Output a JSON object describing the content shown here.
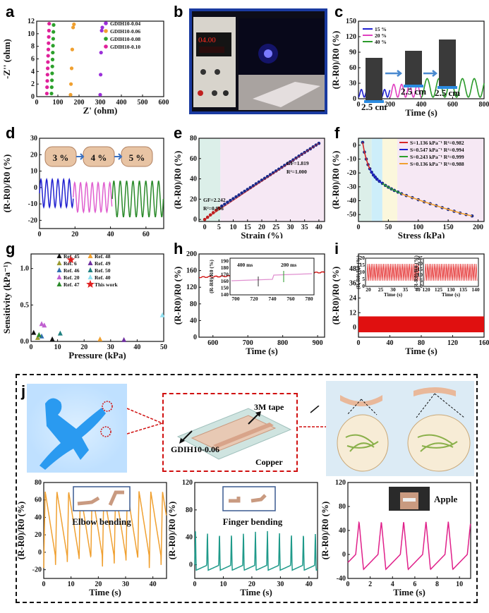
{
  "panel_labels": [
    "a",
    "b",
    "c",
    "d",
    "e",
    "f",
    "g",
    "h",
    "i",
    "j"
  ],
  "psu_display": "04.00",
  "chart_data": [
    {
      "panel": "a",
      "type": "scatter",
      "xlabel": "Z' (ohm)",
      "ylabel": "-Z'' (ohm)",
      "xlim": [
        0,
        600
      ],
      "ylim": [
        0,
        12
      ],
      "xticks": [
        "0",
        "100",
        "200",
        "300",
        "400",
        "500",
        "600"
      ],
      "yticks": [
        "0",
        "2",
        "4",
        "6",
        "8",
        "10",
        "12"
      ],
      "series": [
        {
          "name": "GDIH10-0.04",
          "color": "#9b30d9",
          "x": [
            300,
            302,
            304,
            307,
            310
          ],
          "y": [
            0.3,
            3.5,
            7,
            10.5,
            11
          ]
        },
        {
          "name": "GDIH10-0.06",
          "color": "#f0a030",
          "x": [
            160,
            162,
            165,
            168,
            172,
            176
          ],
          "y": [
            0.3,
            2,
            4.5,
            7.5,
            11,
            11.5
          ]
        },
        {
          "name": "GDIH10-0.08",
          "color": "#2ca02c",
          "x": [
            70,
            71,
            72,
            73,
            74,
            75,
            76,
            77,
            78,
            79,
            80
          ],
          "y": [
            0.5,
            1.5,
            2.6,
            3.7,
            4.8,
            5.9,
            7,
            8.1,
            9.2,
            10.3,
            11.4
          ]
        },
        {
          "name": "GDIH10-0.10",
          "color": "#e0209a",
          "x": [
            48,
            49,
            50,
            51,
            52,
            53,
            54,
            55,
            56,
            57,
            58,
            59
          ],
          "y": [
            0.5,
            1.5,
            2.5,
            3.5,
            4.5,
            5.5,
            6.5,
            7.5,
            8.5,
            9.5,
            10.5,
            11.6
          ]
        }
      ]
    },
    {
      "panel": "c",
      "type": "line",
      "xlabel": "Time (s)",
      "ylabel": "(R-R0)/R0 (%)",
      "xlim": [
        0,
        800
      ],
      "ylim": [
        0,
        150
      ],
      "xticks": [
        "0",
        "200",
        "400",
        "600",
        "800"
      ],
      "yticks": [
        "0",
        "30",
        "60",
        "90",
        "120",
        "150"
      ],
      "labels_25cm": [
        "2.5 cm",
        "2.5 cm",
        "2.5 cm"
      ],
      "series": [
        {
          "name": "15 %",
          "color": "#2020d0",
          "segments": [
            [
              0,
              200
            ]
          ],
          "amp": 15,
          "period": 37
        },
        {
          "name": "20 %",
          "color": "#e040c0",
          "segments": [
            [
              200,
              400
            ]
          ],
          "amp": 25,
          "period": 50
        },
        {
          "name": "40 %",
          "color": "#2a9a2a",
          "segments": [
            [
              400,
              800
            ]
          ],
          "amp": 36,
          "period": 75
        }
      ]
    },
    {
      "panel": "d",
      "type": "line",
      "xlabel": "Time (s)",
      "ylabel": "(R-R0)/R0 (%)",
      "xlim": [
        0,
        70
      ],
      "ylim": [
        -25,
        30
      ],
      "xticks": [
        "0",
        "20",
        "40",
        "60"
      ],
      "yticks": [
        "-20",
        "-10",
        "0",
        "10",
        "20",
        "30"
      ],
      "strain_labels": [
        "3 %",
        "4 %",
        "5 %"
      ],
      "series": [
        {
          "name": "3 %",
          "color": "#2020d0",
          "range": [
            0,
            19
          ],
          "lo": -12,
          "hi": 5,
          "period": 3.2
        },
        {
          "name": "4 %",
          "color": "#e060d0",
          "range": [
            19,
            41
          ],
          "lo": -15,
          "hi": 3,
          "period": 3.3
        },
        {
          "name": "5 %",
          "color": "#2a8a2a",
          "range": [
            41,
            70
          ],
          "lo": -18,
          "hi": 4,
          "period": 3.6
        }
      ]
    },
    {
      "panel": "e",
      "type": "scatter",
      "xlabel": "Strain (%)",
      "ylabel": "(R-R0)/R0 (%)",
      "xlim": [
        -2,
        42
      ],
      "ylim": [
        -2,
        80
      ],
      "xticks": [
        "0",
        "5",
        "10",
        "15",
        "20",
        "25",
        "30",
        "35",
        "40"
      ],
      "yticks": [
        "0",
        "20",
        "40",
        "60",
        "80"
      ],
      "annot": [
        "GF=2.242",
        "R²=0.996",
        "GF=1.819",
        "R²=1.000"
      ],
      "x": [
        0,
        1,
        2,
        3,
        4,
        5,
        6,
        7,
        8,
        9,
        10,
        11,
        12,
        13,
        14,
        15,
        16,
        17,
        18,
        19,
        20,
        21,
        22,
        23,
        24,
        25,
        26,
        27,
        28,
        29,
        30,
        31,
        32,
        33,
        34,
        35,
        36,
        37,
        38,
        39,
        40
      ],
      "y": [
        0,
        2.2,
        4.5,
        6.7,
        9,
        11.2,
        13.2,
        15,
        16.9,
        18.7,
        20.5,
        22.3,
        24.1,
        26,
        27.8,
        29.6,
        31.4,
        33.2,
        35.1,
        36.9,
        38.7,
        40.5,
        42.3,
        44.2,
        46,
        47.8,
        49.6,
        51.4,
        53.3,
        55.1,
        56.9,
        58.7,
        60.5,
        62.4,
        64.2,
        66,
        67.8,
        69.6,
        71.5,
        73.3,
        75
      ]
    },
    {
      "panel": "f",
      "type": "scatter",
      "xlabel": "Stress (kPa)",
      "ylabel": "(R-R0)/R0 (%)",
      "xlim": [
        0,
        210
      ],
      "ylim": [
        -55,
        5
      ],
      "xticks": [
        "0",
        "50",
        "100",
        "150",
        "200"
      ],
      "yticks": [
        "0",
        "-10",
        "-20",
        "-30",
        "-40",
        "-50"
      ],
      "series": [
        {
          "name": "S=1.136 kPa⁻¹ R²=0.982",
          "color": "#d62728"
        },
        {
          "name": "S=0.547 kPa⁻¹ R²=0.994",
          "color": "#2020d0"
        },
        {
          "name": "S=0.243 kPa⁻¹ R²=0.999",
          "color": "#2ca02c"
        },
        {
          "name": "S=0.136 kPa⁻¹ R²=0.988",
          "color": "#f0a030"
        }
      ],
      "x": [
        7,
        10,
        13,
        16,
        19,
        22,
        25,
        28,
        31,
        35,
        40,
        45,
        50,
        55,
        60,
        66,
        72,
        80,
        90,
        100,
        110,
        120,
        130,
        140,
        150,
        160,
        170,
        180,
        190
      ],
      "y": [
        2,
        -5,
        -10,
        -14,
        -17,
        -19.5,
        -21.5,
        -23,
        -24.5,
        -26,
        -27.5,
        -29,
        -30.3,
        -31.5,
        -32.6,
        -33.8,
        -35,
        -36.3,
        -37.8,
        -39.3,
        -40.8,
        -42.2,
        -43.6,
        -45,
        -46.3,
        -47.6,
        -48.9,
        -50,
        -51
      ]
    },
    {
      "panel": "g",
      "type": "scatter",
      "xlabel": "Pressure (kPa)",
      "ylabel": "Sensitivity (kPa⁻¹)",
      "xlim": [
        0,
        50
      ],
      "ylim": [
        0,
        1.2
      ],
      "xticks": [
        "0",
        "10",
        "20",
        "30",
        "40",
        "50"
      ],
      "yticks": [
        "0.0",
        "0.5",
        "1.0"
      ],
      "series": [
        {
          "name": "Ref. 45",
          "color": "#111111",
          "x": [
            1,
            8
          ],
          "y": [
            0.12,
            0.03
          ]
        },
        {
          "name": "Ref. 6",
          "color": "#9a9a30",
          "x": [
            2.5
          ],
          "y": [
            0.05
          ]
        },
        {
          "name": "Ref. 46",
          "color": "#3070b0",
          "x": [
            4
          ],
          "y": [
            0.07
          ]
        },
        {
          "name": "Ref. 20",
          "color": "#c060d0",
          "x": [
            4,
            5
          ],
          "y": [
            0.24,
            0.22
          ]
        },
        {
          "name": "Ref. 47",
          "color": "#2a8a2a",
          "x": [
            3
          ],
          "y": [
            0.09
          ]
        },
        {
          "name": "Ref. 48",
          "color": "#f0a030",
          "x": [
            26
          ],
          "y": [
            0.03
          ]
        },
        {
          "name": "Ref. 49",
          "color": "#7030a0",
          "x": [
            35
          ],
          "y": [
            0.02
          ]
        },
        {
          "name": "Ref. 50",
          "color": "#208080",
          "x": [
            11
          ],
          "y": [
            0.11
          ]
        },
        {
          "name": "Ref. 40",
          "color": "#90e0f0",
          "x": [
            49.5
          ],
          "y": [
            0.36
          ]
        },
        {
          "name": "This work",
          "color": "#e02020",
          "x": [
            15
          ],
          "y": [
            1.12
          ]
        }
      ]
    },
    {
      "panel": "h",
      "type": "line",
      "xlabel": "Time (s)",
      "ylabel": "(R-R0)/R0 (%)",
      "xlim": [
        560,
        920
      ],
      "ylim": [
        0,
        200
      ],
      "xticks": [
        "600",
        "700",
        "800",
        "900"
      ],
      "yticks": [
        "0",
        "40",
        "80",
        "120",
        "160",
        "200"
      ],
      "y_start": 143,
      "y_end": 155,
      "inset": {
        "xticks": [
          "700",
          "720",
          "740",
          "760",
          "780"
        ],
        "yticks": [
          "140",
          "150",
          "160",
          "170",
          "180",
          "190"
        ],
        "ylabel": "(R-R0)/R0 (%)",
        "labels": [
          "400 ms",
          "200 ms"
        ]
      }
    },
    {
      "panel": "i",
      "type": "line",
      "xlabel": "Time (s)",
      "ylabel": "(R-R0)/R0 (%)",
      "xlim": [
        0,
        160
      ],
      "ylim": [
        -8,
        60
      ],
      "xticks": [
        "0",
        "40",
        "80",
        "120",
        "160"
      ],
      "yticks": [
        "0",
        "12",
        "24",
        "36",
        "48"
      ],
      "band_lo": -4,
      "band_hi": 9,
      "insets": [
        {
          "xlabel": "Time (s)",
          "ylabel": "(R-R0)/R0 (%)",
          "xticks": [
            "20",
            "25",
            "30",
            "35",
            "40"
          ],
          "yticks": [
            "0",
            "5",
            "10",
            "15",
            "20"
          ]
        },
        {
          "xlabel": "Time (s)",
          "ylabel": "(R-R0)/R0 (%)",
          "xticks": [
            "120",
            "125",
            "130",
            "135",
            "140"
          ],
          "yticks": [
            "0",
            "5",
            "10",
            "15",
            "20",
            "25"
          ]
        }
      ]
    },
    {
      "panel": "j1",
      "type": "line",
      "title": "Elbow bending",
      "xlabel": "Time (s)",
      "ylabel": "(R-R0)/R0 (%)",
      "xlim": [
        0,
        45
      ],
      "ylim": [
        -30,
        80
      ],
      "xticks": [
        "0",
        "10",
        "20",
        "30",
        "40"
      ],
      "yticks": [
        "-20",
        "0",
        "20",
        "40",
        "60",
        "80"
      ],
      "color": "#f0a030"
    },
    {
      "panel": "j2",
      "type": "line",
      "title": "Finger bending",
      "xlabel": "Time (s)",
      "ylabel": "(R-R0)/R0 (%)",
      "xlim": [
        0,
        43
      ],
      "ylim": [
        -20,
        120
      ],
      "xticks": [
        "0",
        "10",
        "20",
        "30",
        "40"
      ],
      "yticks": [
        "0",
        "40",
        "80",
        "120"
      ],
      "color": "#1f9a8a"
    },
    {
      "panel": "j3",
      "type": "line",
      "title": "Apple",
      "xlabel": "Time (s)",
      "ylabel": "(R-R0)/R0 (%)",
      "xlim": [
        0,
        11
      ],
      "ylim": [
        -40,
        120
      ],
      "xticks": [
        "0",
        "2",
        "4",
        "6",
        "8",
        "10"
      ],
      "yticks": [
        "-40",
        "0",
        "40",
        "80",
        "120"
      ],
      "color": "#e0208a"
    }
  ],
  "device": {
    "tape": "3M tape",
    "material": "GDIH10-0.06",
    "electrode": "Copper"
  }
}
